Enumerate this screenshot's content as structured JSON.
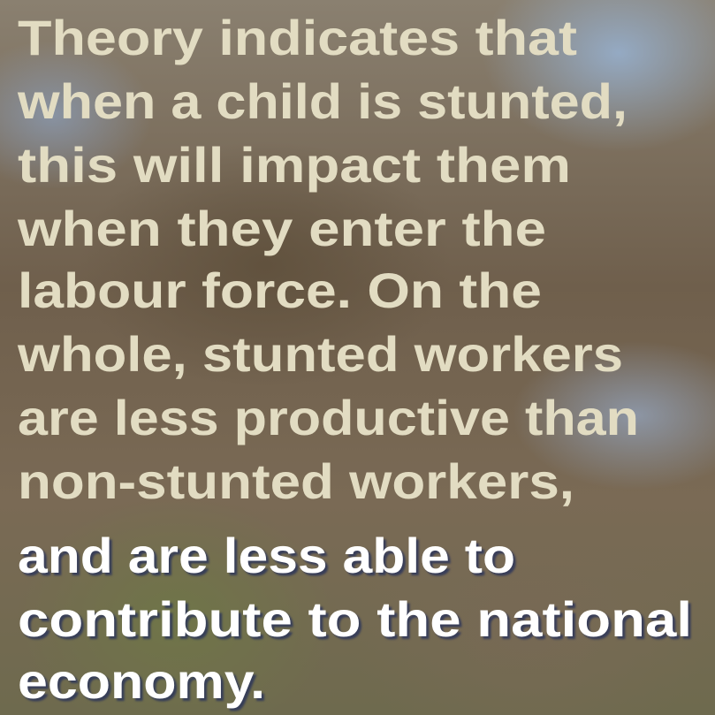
{
  "caption": {
    "highlight_lines": [
      "Theory indicates that",
      "when a child is stunted,",
      "this will impact them",
      "when they enter the",
      "labour force. On the",
      "whole, stunted workers",
      "are less productive than",
      "non-stunted workers,"
    ],
    "white_lines": [
      "and are less able to",
      "contribute to the national",
      "economy."
    ]
  }
}
